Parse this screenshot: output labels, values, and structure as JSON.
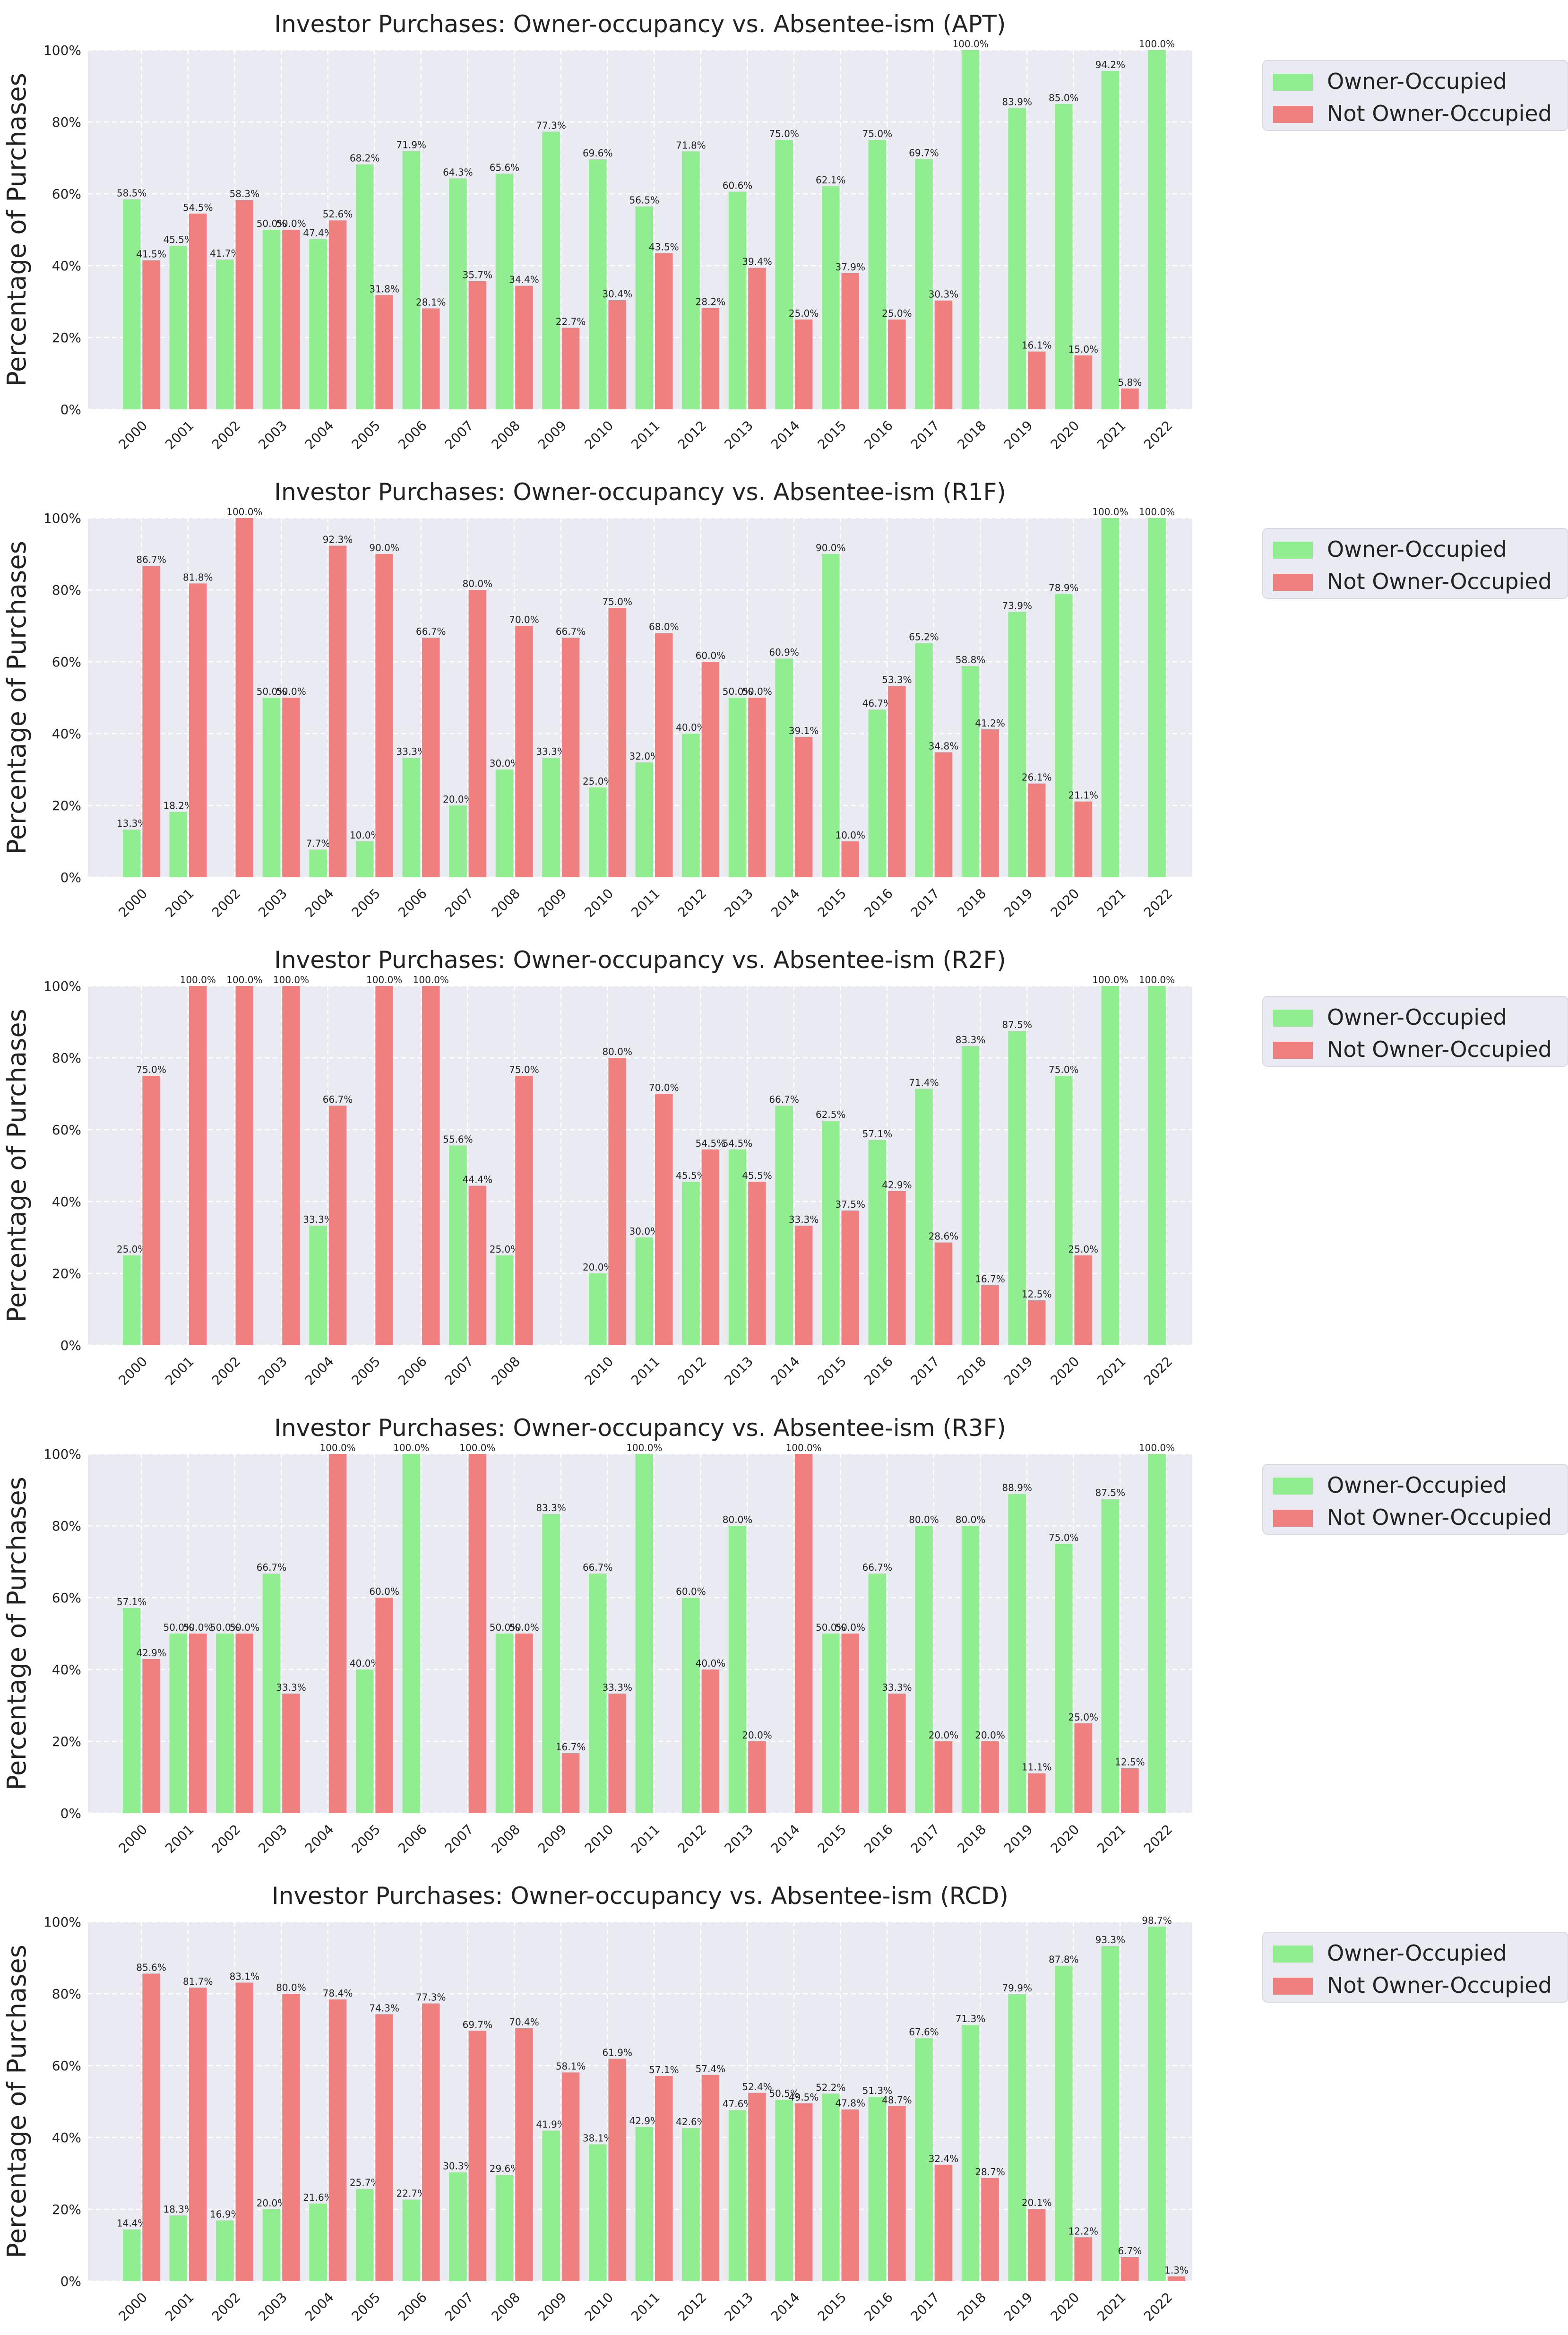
{
  "legend": {
    "owner_label": "Owner-Occupied",
    "not_owner_label": "Not Owner-Occupied",
    "owner_color": "#90ee90",
    "not_owner_color": "#f08080"
  },
  "chart_data": [
    {
      "type": "bar",
      "title": "Investor Purchases: Owner-occupancy vs. Absentee-ism (APT)",
      "xlabel": "",
      "ylabel": "Percentage of Purchases",
      "ylim": [
        0,
        100
      ],
      "yticks": [
        "0%",
        "20%",
        "40%",
        "60%",
        "80%",
        "100%"
      ],
      "grid": true,
      "legend_position": "outside-right",
      "categories": [
        "2000",
        "2001",
        "2002",
        "2003",
        "2004",
        "2005",
        "2006",
        "2007",
        "2008",
        "2009",
        "2010",
        "2011",
        "2012",
        "2013",
        "2014",
        "2015",
        "2016",
        "2017",
        "2018",
        "2019",
        "2020",
        "2021",
        "2022"
      ],
      "series": [
        {
          "name": "Owner-Occupied",
          "values": [
            58.5,
            45.5,
            41.7,
            50.0,
            47.4,
            68.2,
            71.9,
            64.3,
            65.6,
            77.3,
            69.6,
            56.5,
            71.8,
            60.6,
            75.0,
            62.1,
            75.0,
            69.7,
            100.0,
            83.9,
            85.0,
            94.2,
            100.0
          ],
          "labels": [
            "58.5%",
            "45.5%",
            "41.7%",
            "50.0%",
            "47.4%",
            "68.2%",
            "71.9%",
            "64.3%",
            "65.6%",
            "77.3%",
            "69.6%",
            "56.5%",
            "71.8%",
            "60.6%",
            "75.0%",
            "62.1%",
            "75.0%",
            "69.7%",
            "100.0%",
            "83.9%",
            "85.0%",
            "94.2%",
            "100.0%"
          ]
        },
        {
          "name": "Not Owner-Occupied",
          "values": [
            41.5,
            54.5,
            58.3,
            50.0,
            52.6,
            31.8,
            28.1,
            35.7,
            34.4,
            22.7,
            30.4,
            43.5,
            28.2,
            39.4,
            25.0,
            37.9,
            25.0,
            30.3,
            null,
            16.1,
            15.0,
            5.8,
            null
          ],
          "labels": [
            "41.5%",
            "54.5%",
            "58.3%",
            "50.0%",
            "52.6%",
            "31.8%",
            "28.1%",
            "35.7%",
            "34.4%",
            "22.7%",
            "30.4%",
            "43.5%",
            "28.2%",
            "39.4%",
            "25.0%",
            "37.9%",
            "25.0%",
            "30.3%",
            "",
            "16.1%",
            "15.0%",
            "5.8%",
            ""
          ]
        }
      ]
    },
    {
      "type": "bar",
      "title": "Investor Purchases: Owner-occupancy vs. Absentee-ism (R1F)",
      "xlabel": "",
      "ylabel": "Percentage of Purchases",
      "ylim": [
        0,
        100
      ],
      "yticks": [
        "0%",
        "20%",
        "40%",
        "60%",
        "80%",
        "100%"
      ],
      "grid": true,
      "legend_position": "outside-right",
      "categories": [
        "2000",
        "2001",
        "2002",
        "2003",
        "2004",
        "2005",
        "2006",
        "2007",
        "2008",
        "2009",
        "2010",
        "2011",
        "2012",
        "2013",
        "2014",
        "2015",
        "2016",
        "2017",
        "2018",
        "2019",
        "2020",
        "2021",
        "2022"
      ],
      "series": [
        {
          "name": "Owner-Occupied",
          "values": [
            13.3,
            18.2,
            null,
            50.0,
            7.7,
            10.0,
            33.3,
            20.0,
            30.0,
            33.3,
            25.0,
            32.0,
            40.0,
            50.0,
            60.9,
            90.0,
            46.7,
            65.2,
            58.8,
            73.9,
            78.9,
            100.0,
            100.0
          ],
          "labels": [
            "13.3%",
            "18.2%",
            "",
            "50.0%",
            "7.7%",
            "10.0%",
            "33.3%",
            "20.0%",
            "30.0%",
            "33.3%",
            "25.0%",
            "32.0%",
            "40.0%",
            "50.0%",
            "60.9%",
            "90.0%",
            "46.7%",
            "65.2%",
            "58.8%",
            "73.9%",
            "78.9%",
            "100.0%",
            "100.0%"
          ]
        },
        {
          "name": "Not Owner-Occupied",
          "values": [
            86.7,
            81.8,
            100.0,
            50.0,
            92.3,
            90.0,
            66.7,
            80.0,
            70.0,
            66.7,
            75.0,
            68.0,
            60.0,
            50.0,
            39.1,
            10.0,
            53.3,
            34.8,
            41.2,
            26.1,
            21.1,
            null,
            null
          ],
          "labels": [
            "86.7%",
            "81.8%",
            "100.0%",
            "50.0%",
            "92.3%",
            "90.0%",
            "66.7%",
            "80.0%",
            "70.0%",
            "66.7%",
            "75.0%",
            "68.0%",
            "60.0%",
            "50.0%",
            "39.1%",
            "10.0%",
            "53.3%",
            "34.8%",
            "41.2%",
            "26.1%",
            "21.1%",
            "",
            ""
          ]
        }
      ]
    },
    {
      "type": "bar",
      "title": "Investor Purchases: Owner-occupancy vs. Absentee-ism (R2F)",
      "xlabel": "",
      "ylabel": "Percentage of Purchases",
      "ylim": [
        0,
        100
      ],
      "yticks": [
        "0%",
        "20%",
        "40%",
        "60%",
        "80%",
        "100%"
      ],
      "grid": true,
      "legend_position": "outside-right",
      "categories": [
        "2000",
        "2001",
        "2002",
        "2003",
        "2004",
        "2005",
        "2006",
        "2007",
        "2008",
        "",
        "2010",
        "2011",
        "2012",
        "2013",
        "2014",
        "2015",
        "2016",
        "2017",
        "2018",
        "2019",
        "2020",
        "2021",
        "2022"
      ],
      "series": [
        {
          "name": "Owner-Occupied",
          "values": [
            25.0,
            null,
            null,
            null,
            33.3,
            null,
            null,
            55.6,
            25.0,
            null,
            20.0,
            30.0,
            45.5,
            54.5,
            66.7,
            62.5,
            57.1,
            71.4,
            83.3,
            87.5,
            75.0,
            100.0,
            100.0
          ],
          "labels": [
            "25.0%",
            "",
            "",
            "",
            "33.3%",
            "",
            "",
            "55.6%",
            "25.0%",
            "",
            "20.0%",
            "30.0%",
            "45.5%",
            "54.5%",
            "66.7%",
            "62.5%",
            "57.1%",
            "71.4%",
            "83.3%",
            "87.5%",
            "75.0%",
            "100.0%",
            "100.0%"
          ]
        },
        {
          "name": "Not Owner-Occupied",
          "values": [
            75.0,
            100.0,
            100.0,
            100.0,
            66.7,
            100.0,
            100.0,
            44.4,
            75.0,
            null,
            80.0,
            70.0,
            54.5,
            45.5,
            33.3,
            37.5,
            42.9,
            28.6,
            16.7,
            12.5,
            25.0,
            null,
            null
          ],
          "labels": [
            "75.0%",
            "100.0%",
            "100.0%",
            "100.0%",
            "66.7%",
            "100.0%",
            "100.0%",
            "44.4%",
            "75.0%",
            "",
            "80.0%",
            "70.0%",
            "54.5%",
            "45.5%",
            "33.3%",
            "37.5%",
            "42.9%",
            "28.6%",
            "16.7%",
            "12.5%",
            "25.0%",
            "",
            ""
          ]
        }
      ]
    },
    {
      "type": "bar",
      "title": "Investor Purchases: Owner-occupancy vs. Absentee-ism (R3F)",
      "xlabel": "",
      "ylabel": "Percentage of Purchases",
      "ylim": [
        0,
        100
      ],
      "yticks": [
        "0%",
        "20%",
        "40%",
        "60%",
        "80%",
        "100%"
      ],
      "grid": true,
      "legend_position": "outside-right",
      "categories": [
        "2000",
        "2001",
        "2002",
        "2003",
        "2004",
        "2005",
        "2006",
        "2007",
        "2008",
        "2009",
        "2010",
        "2011",
        "2012",
        "2013",
        "2014",
        "2015",
        "2016",
        "2017",
        "2018",
        "2019",
        "2020",
        "2021",
        "2022"
      ],
      "series": [
        {
          "name": "Owner-Occupied",
          "values": [
            57.1,
            50.0,
            50.0,
            66.7,
            null,
            40.0,
            100.0,
            null,
            50.0,
            83.3,
            66.7,
            100.0,
            60.0,
            80.0,
            null,
            50.0,
            66.7,
            80.0,
            80.0,
            88.9,
            75.0,
            87.5,
            100.0
          ],
          "labels": [
            "57.1%",
            "50.0%",
            "50.0%",
            "66.7%",
            "",
            "40.0%",
            "100.0%",
            "",
            "50.0%",
            "83.3%",
            "66.7%",
            "100.0%",
            "60.0%",
            "80.0%",
            "",
            "50.0%",
            "66.7%",
            "80.0%",
            "80.0%",
            "88.9%",
            "75.0%",
            "87.5%",
            "100.0%"
          ]
        },
        {
          "name": "Not Owner-Occupied",
          "values": [
            42.9,
            50.0,
            50.0,
            33.3,
            100.0,
            60.0,
            null,
            100.0,
            50.0,
            16.7,
            33.3,
            null,
            40.0,
            20.0,
            100.0,
            50.0,
            33.3,
            20.0,
            20.0,
            11.1,
            25.0,
            12.5,
            null
          ],
          "labels": [
            "42.9%",
            "50.0%",
            "50.0%",
            "33.3%",
            "100.0%",
            "60.0%",
            "",
            "100.0%",
            "50.0%",
            "16.7%",
            "33.3%",
            "",
            "40.0%",
            "20.0%",
            "100.0%",
            "50.0%",
            "33.3%",
            "20.0%",
            "20.0%",
            "11.1%",
            "25.0%",
            "12.5%",
            ""
          ]
        }
      ]
    },
    {
      "type": "bar",
      "title": "Investor Purchases: Owner-occupancy vs. Absentee-ism (RCD)",
      "xlabel": "",
      "ylabel": "Percentage of Purchases",
      "ylim": [
        0,
        100
      ],
      "yticks": [
        "0%",
        "20%",
        "40%",
        "60%",
        "80%",
        "100%"
      ],
      "grid": true,
      "legend_position": "outside-right",
      "categories": [
        "2000",
        "2001",
        "2002",
        "2003",
        "2004",
        "2005",
        "2006",
        "2007",
        "2008",
        "2009",
        "2010",
        "2011",
        "2012",
        "2013",
        "2014",
        "2015",
        "2016",
        "2017",
        "2018",
        "2019",
        "2020",
        "2021",
        "2022"
      ],
      "series": [
        {
          "name": "Owner-Occupied",
          "values": [
            14.4,
            18.3,
            16.9,
            20.0,
            21.6,
            25.7,
            22.7,
            30.3,
            29.6,
            41.9,
            38.1,
            42.9,
            42.6,
            47.6,
            50.5,
            52.2,
            51.3,
            67.6,
            71.3,
            79.9,
            87.8,
            93.3,
            98.7
          ],
          "labels": [
            "14.4%",
            "18.3%",
            "16.9%",
            "20.0%",
            "21.6%",
            "25.7%",
            "22.7%",
            "30.3%",
            "29.6%",
            "41.9%",
            "38.1%",
            "42.9%",
            "42.6%",
            "47.6%",
            "50.5%",
            "52.2%",
            "51.3%",
            "67.6%",
            "71.3%",
            "79.9%",
            "87.8%",
            "93.3%",
            "98.7%"
          ]
        },
        {
          "name": "Not Owner-Occupied",
          "values": [
            85.6,
            81.7,
            83.1,
            80.0,
            78.4,
            74.3,
            77.3,
            69.7,
            70.4,
            58.1,
            61.9,
            57.1,
            57.4,
            52.4,
            49.5,
            47.8,
            48.7,
            32.4,
            28.7,
            20.1,
            12.2,
            6.7,
            1.3
          ],
          "labels": [
            "85.6%",
            "81.7%",
            "83.1%",
            "80.0%",
            "78.4%",
            "74.3%",
            "77.3%",
            "69.7%",
            "70.4%",
            "58.1%",
            "61.9%",
            "57.1%",
            "57.4%",
            "52.4%",
            "49.5%",
            "47.8%",
            "48.7%",
            "32.4%",
            "28.7%",
            "20.1%",
            "12.2%",
            "6.7%",
            "1.3%"
          ]
        }
      ]
    }
  ]
}
